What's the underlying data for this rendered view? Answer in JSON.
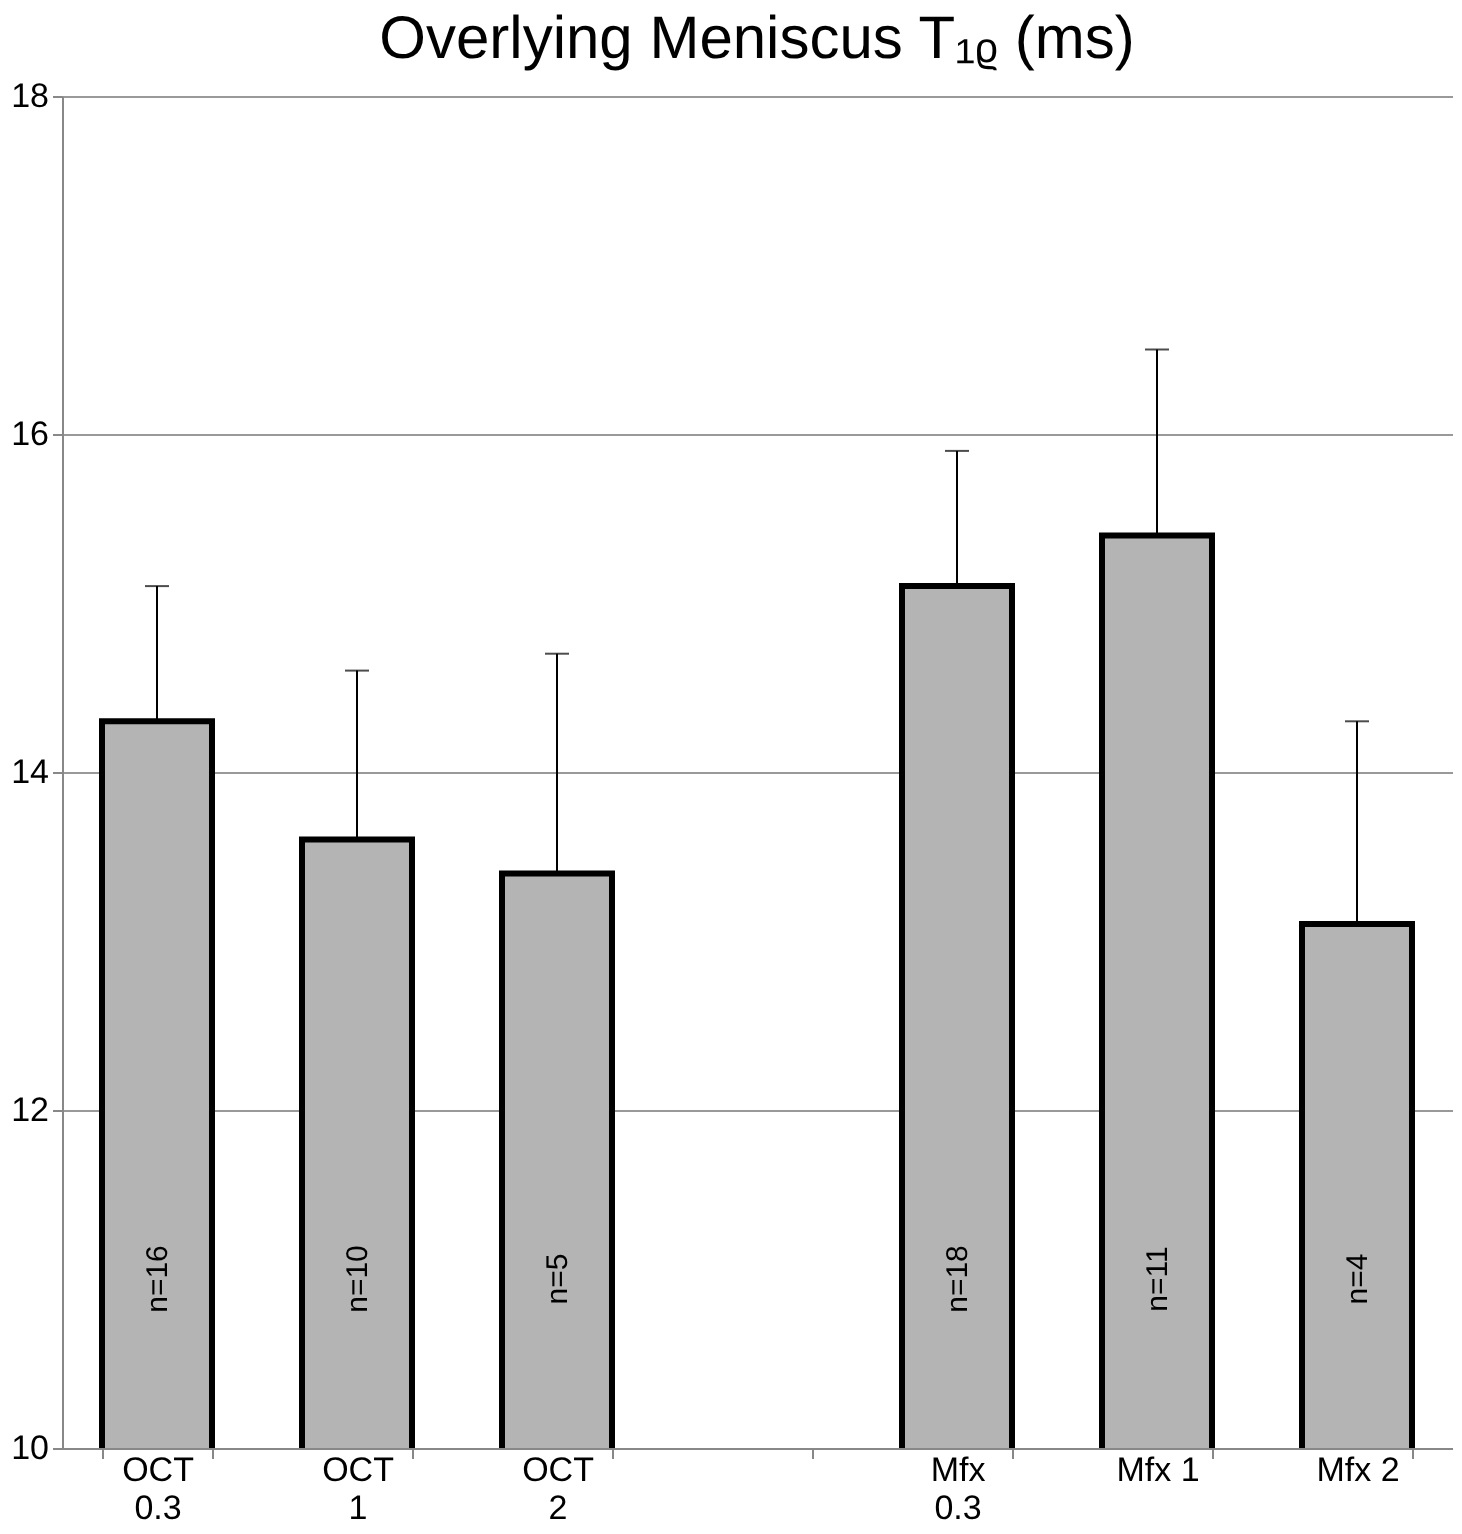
{
  "chart_data": {
    "type": "bar",
    "title": "Overlying Meniscus T₁ᵨ (ms)",
    "categories": [
      "OCT\n0.3",
      "OCT\n1",
      "OCT\n2",
      null,
      "Mfx\n0.3",
      "Mfx 1",
      "Mfx 2"
    ],
    "series": [
      {
        "color": "#b4b4b4",
        "values": [
          14.3,
          13.6,
          13.4,
          null,
          15.1,
          15.4,
          13.1
        ],
        "errors": [
          [
            14.3,
            15.1
          ],
          [
            13.6,
            14.6
          ],
          [
            13.4,
            14.7
          ],
          null,
          [
            15.1,
            15.9
          ],
          [
            15.4,
            16.5
          ],
          [
            13.1,
            14.3
          ]
        ]
      }
    ],
    "ylim": [
      10,
      18
    ],
    "yticks": [
      10,
      12,
      14,
      16,
      18
    ],
    "grid": "y",
    "annotations": [
      "n=16",
      "n=10",
      "n=5",
      "n=18",
      "n=11",
      "n=4"
    ]
  }
}
